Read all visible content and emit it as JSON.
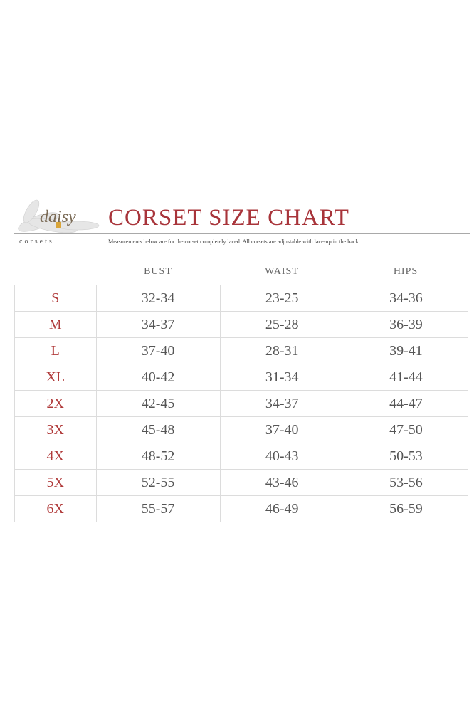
{
  "brand": {
    "logo_text": "daisy",
    "logo_sub": "corsets"
  },
  "title": "CORSET SIZE CHART",
  "note": "Measurements below are for the corset completely laced.  All corsets are adjustable with lace-up in the back.",
  "columns": [
    "BUST",
    "WAIST",
    "HIPS"
  ],
  "rows": [
    {
      "size": "S",
      "bust": "32-34",
      "waist": "23-25",
      "hips": "34-36"
    },
    {
      "size": "M",
      "bust": "34-37",
      "waist": "25-28",
      "hips": "36-39"
    },
    {
      "size": "L",
      "bust": "37-40",
      "waist": "28-31",
      "hips": "39-41"
    },
    {
      "size": "XL",
      "bust": "40-42",
      "waist": "31-34",
      "hips": "41-44"
    },
    {
      "size": "2X",
      "bust": "42-45",
      "waist": "34-37",
      "hips": "44-47"
    },
    {
      "size": "3X",
      "bust": "45-48",
      "waist": "37-40",
      "hips": "47-50"
    },
    {
      "size": "4X",
      "bust": "48-52",
      "waist": "40-43",
      "hips": "50-53"
    },
    {
      "size": "5X",
      "bust": "52-55",
      "waist": "43-46",
      "hips": "53-56"
    },
    {
      "size": "6X",
      "bust": "55-57",
      "waist": "46-49",
      "hips": "56-59"
    }
  ],
  "colors": {
    "accent": "#a8343a",
    "rule": "#a9a9a9"
  }
}
